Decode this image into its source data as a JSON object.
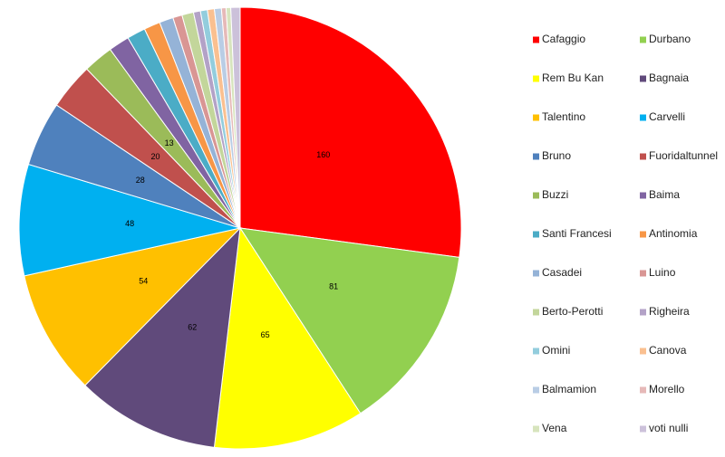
{
  "chart_data": {
    "type": "pie",
    "categories": [
      "Cafaggio",
      "Durbano",
      "Rem Bu Kan",
      "Bagnaia",
      "Talentino",
      "Carvelli",
      "Bruno",
      "Fuoridaltunnel",
      "Buzzi",
      "Baima",
      "Santi Francesi",
      "Antinomia",
      "Casadei",
      "Luino",
      "Berto-Perotti",
      "Righeira",
      "Omini",
      "Canova",
      "Balmamion",
      "Morello",
      "Vena",
      "voti nulli"
    ],
    "values": [
      160,
      81,
      65,
      62,
      54,
      48,
      28,
      20,
      13,
      9,
      8,
      7,
      6,
      4,
      5,
      3,
      3,
      3,
      3,
      2,
      2,
      4
    ],
    "value_labels": [
      "160",
      "81",
      "65",
      "62",
      "54",
      "48",
      "28",
      "20",
      "13",
      null,
      null,
      null,
      null,
      null,
      null,
      null,
      null,
      null,
      null,
      null,
      null,
      null
    ],
    "colors": [
      "#ff0000",
      "#92d050",
      "#ffff00",
      "#604a7b",
      "#ffc000",
      "#00b0f0",
      "#4f81bd",
      "#c0504d",
      "#9bbb59",
      "#8064a2",
      "#4bacc6",
      "#f79646",
      "#95b3d7",
      "#d99694",
      "#c3d69b",
      "#b3a2c7",
      "#93cddd",
      "#fac090",
      "#b9cde5",
      "#e6b9b8",
      "#d7e4bd",
      "#ccc1da"
    ]
  }
}
